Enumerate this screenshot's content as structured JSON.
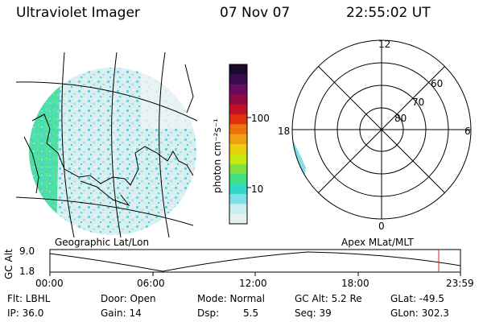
{
  "header": {
    "instrument": "Ultraviolet Imager",
    "date": "07 Nov 07",
    "time": "22:55:02 UT"
  },
  "colorbar": {
    "unit_label": "photon cm⁻²s⁻¹",
    "ticks": [
      "100",
      "10"
    ],
    "colors": [
      "#1a0a2a",
      "#3a0a50",
      "#6a0a60",
      "#900a40",
      "#c0102a",
      "#e03010",
      "#f07010",
      "#f0a010",
      "#e8d010",
      "#c8e810",
      "#80e040",
      "#40e080",
      "#30d8c8",
      "#80e0e8",
      "#c8eef0",
      "#e8f0f0"
    ]
  },
  "polar_plot": {
    "mlt_labels": [
      "12",
      "18",
      "6",
      "0"
    ],
    "lat_labels": [
      "60",
      "70",
      "80"
    ]
  },
  "altitude_plot": {
    "left_title": "Geographic Lat/Lon",
    "right_title": "Apex MLat/MLT",
    "ylabel": "GC Alt",
    "y_ticks": [
      "9.0",
      "1.8"
    ],
    "x_ticks": [
      "00:00",
      "06:00",
      "12:00",
      "18:00",
      "23:59"
    ],
    "current_marker_color": "#e02020"
  },
  "info": {
    "filter": "Flt: LBHL",
    "ip": "IP: 36.0",
    "door": "Door: Open",
    "gain": "Gain: 14",
    "mode": "Mode: Normal",
    "dsp_label": "Dsp:",
    "dsp_value": "5.5",
    "gc_alt": "GC Alt: 5.2 Re",
    "seq": "Seq: 39",
    "glat": "GLat: -49.5",
    "glon": "GLon: 302.3"
  }
}
